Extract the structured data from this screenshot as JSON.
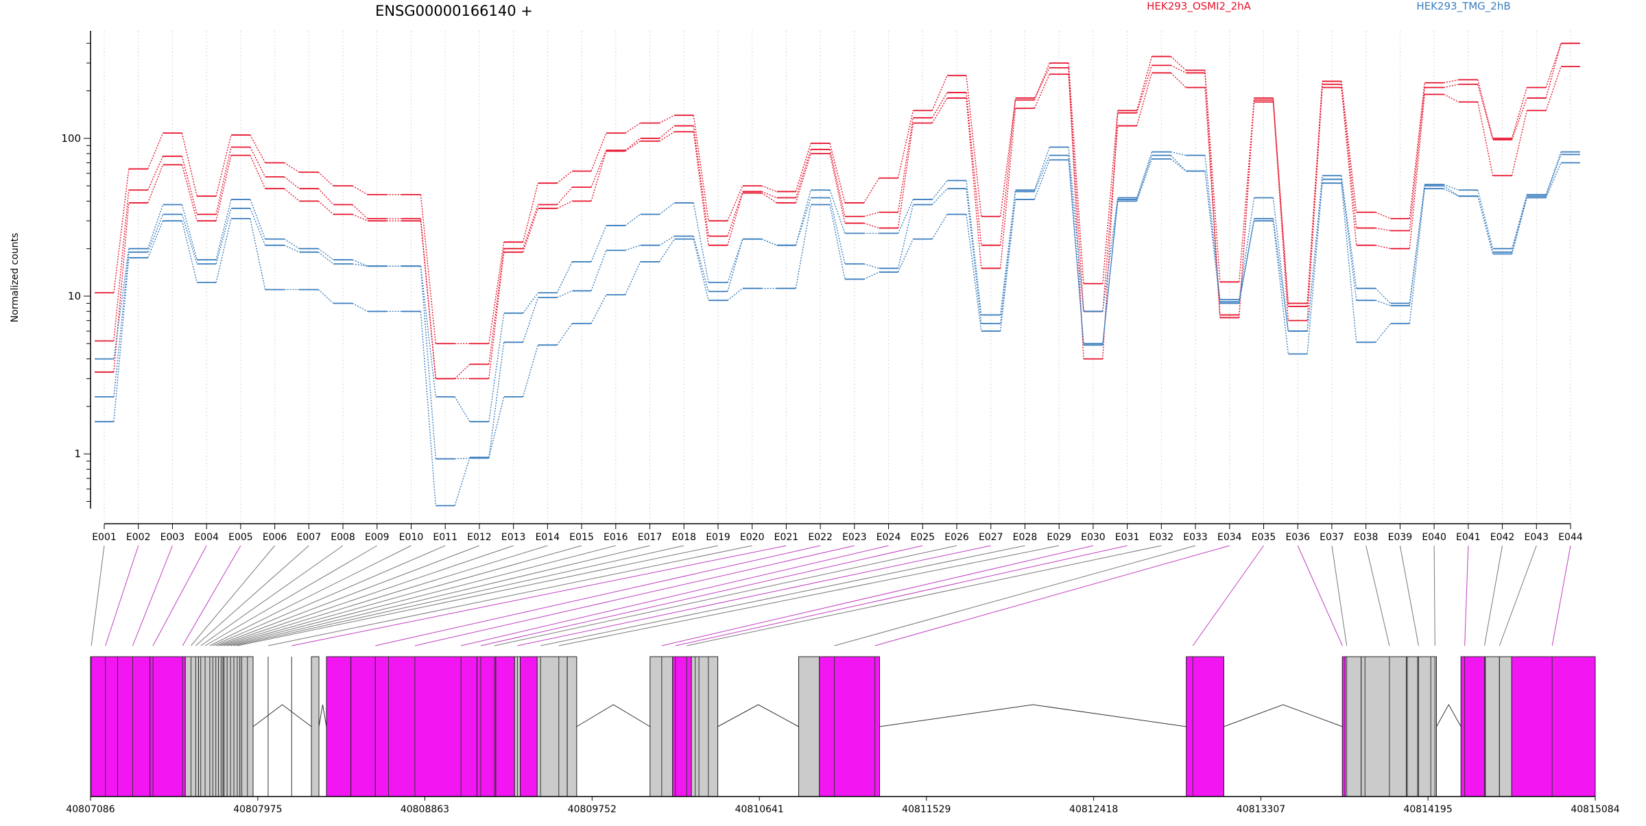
{
  "colors": {
    "accent": "#e8132c",
    "secondary": "#3a7ebf",
    "exon_diff": "#f217f2",
    "exon_plain": "#cbcbcb",
    "axis": "#000000",
    "grid": "#d8d8d8",
    "connector_grey": "#777777",
    "connector_magenta": "#c03cc0"
  },
  "header": {
    "gene_title": "ENSG00000166140 +"
  },
  "chart_data": {
    "type": "line",
    "title": "ENSG00000166140 +",
    "ylabel": "Normalized counts",
    "xlabel": "",
    "yscale": "log",
    "ylim": [
      0.45,
      480
    ],
    "yticks": [
      {
        "value": 1,
        "label": "1"
      },
      {
        "value": 10,
        "label": "10"
      },
      {
        "value": 100,
        "label": "100"
      }
    ],
    "grid": "vertical dotted lines at each exon bin",
    "legend": "top, centered over each group",
    "categories": [
      "E001",
      "E002",
      "E003",
      "E004",
      "E005",
      "E006",
      "E007",
      "E008",
      "E009",
      "E010",
      "E011",
      "E012",
      "E013",
      "E014",
      "E015",
      "E016",
      "E017",
      "E018",
      "E019",
      "E020",
      "E021",
      "E022",
      "E023",
      "E024",
      "E025",
      "E026",
      "E027",
      "E028",
      "E029",
      "E030",
      "E031",
      "E032",
      "E033",
      "E034",
      "E035",
      "E036",
      "E037",
      "E038",
      "E039",
      "E040",
      "E041",
      "E042",
      "E043",
      "E044"
    ],
    "groups": [
      {
        "name": "HEK293_OSMI2_2hA",
        "color": "#e8132c"
      },
      {
        "name": "HEK293_TMG_2hB",
        "color": "#3a7ebf"
      }
    ],
    "series": [
      {
        "group": 0,
        "values": [
          10.5,
          64,
          108,
          43,
          105,
          70,
          61,
          50,
          44,
          44,
          5.0,
          5.0,
          22,
          52,
          62,
          108,
          125,
          140,
          30,
          50,
          46,
          93,
          39,
          56,
          150,
          250,
          32,
          175,
          300,
          12,
          150,
          330,
          270,
          12.3,
          175,
          9,
          230,
          34,
          31,
          225,
          235,
          100,
          210,
          400
        ]
      },
      {
        "group": 0,
        "values": [
          5.2,
          47,
          77,
          33,
          88,
          57,
          48,
          38,
          31,
          31,
          3.0,
          3.7,
          20,
          38,
          49,
          84,
          100,
          120,
          24,
          46,
          42,
          85,
          32,
          34,
          135,
          195,
          21,
          180,
          280,
          4.0,
          145,
          290,
          260,
          7.3,
          180,
          8.6,
          220,
          27,
          26,
          210,
          220,
          98,
          180,
          400
        ]
      },
      {
        "group": 0,
        "values": [
          3.3,
          39,
          68,
          30,
          78,
          48,
          40,
          33,
          30,
          30,
          3.0,
          3.0,
          19,
          36,
          40,
          83,
          96,
          110,
          21,
          45,
          39,
          80,
          29,
          27,
          125,
          180,
          15,
          155,
          255,
          8.0,
          120,
          260,
          210,
          7.6,
          170,
          7.0,
          210,
          21,
          20,
          190,
          170,
          58,
          150,
          285
        ]
      },
      {
        "group": 1,
        "values": [
          4.0,
          20,
          38,
          17,
          41,
          23,
          20,
          17,
          15.5,
          15.5,
          2.3,
          1.6,
          7.8,
          10.5,
          16.5,
          28,
          33,
          39,
          12.2,
          23,
          21,
          47,
          25,
          25,
          41,
          54,
          7.6,
          47,
          88,
          8.0,
          42,
          82,
          78,
          9.5,
          42,
          6.0,
          58,
          11.2,
          9.0,
          51,
          47,
          20,
          44,
          82
        ]
      },
      {
        "group": 1,
        "values": [
          2.3,
          19,
          33,
          16,
          36,
          21,
          19,
          16,
          15.5,
          15.5,
          0.93,
          0.94,
          5.1,
          9.8,
          10.8,
          19.5,
          21,
          24,
          10.7,
          23,
          21,
          42,
          16,
          15,
          38,
          48,
          6.7,
          46,
          78,
          5.0,
          41,
          78,
          62,
          9.0,
          31,
          6.0,
          55,
          9.4,
          8.7,
          50,
          43,
          19,
          43,
          79
        ]
      },
      {
        "group": 1,
        "values": [
          1.6,
          17.5,
          30,
          12.2,
          31,
          11,
          11,
          9,
          8,
          8,
          0.47,
          0.95,
          2.3,
          4.9,
          6.7,
          10.2,
          16.5,
          23,
          9.4,
          11.2,
          11.2,
          38,
          12.8,
          14.2,
          23,
          33,
          6.0,
          41,
          73,
          4.9,
          40,
          74,
          62,
          9.2,
          30,
          4.3,
          52,
          5.1,
          6.7,
          48,
          43,
          18.5,
          42,
          70
        ]
      }
    ]
  },
  "gene_model": {
    "coordinate_labels": [
      "40807086",
      "40807975",
      "40808863",
      "40809752",
      "40810641",
      "40811529",
      "40812418",
      "40813307",
      "40814195",
      "40815084"
    ],
    "exons": [
      {
        "start": 40807086,
        "end": 40807230,
        "diff": true
      },
      {
        "start": 40807230,
        "end": 40807402,
        "diff": true
      },
      {
        "start": 40807402,
        "end": 40807590,
        "diff": true
      },
      {
        "start": 40807590,
        "end": 40807660,
        "diff": false
      },
      {
        "start": 40807660,
        "end": 40807790,
        "diff": false
      },
      {
        "start": 40807790,
        "end": 40807880,
        "diff": false
      },
      {
        "start": 40807880,
        "end": 40807950,
        "diff": false
      },
      {
        "start": 40808260,
        "end": 40808300,
        "diff": false
      },
      {
        "start": 40808340,
        "end": 40808470,
        "diff": true
      },
      {
        "start": 40808470,
        "end": 40808600,
        "diff": true
      },
      {
        "start": 40808600,
        "end": 40809140,
        "diff": true
      },
      {
        "start": 40809140,
        "end": 40809240,
        "diff": true
      },
      {
        "start": 40809240,
        "end": 40809340,
        "diff": true
      },
      {
        "start": 40809340,
        "end": 40809370,
        "diff": false
      },
      {
        "start": 40809370,
        "end": 40809460,
        "diff": true
      },
      {
        "start": 40809460,
        "end": 40809620,
        "diff": false
      },
      {
        "start": 40809620,
        "end": 40809670,
        "diff": false
      },
      {
        "start": 40810060,
        "end": 40810180,
        "diff": false
      },
      {
        "start": 40810180,
        "end": 40810280,
        "diff": true
      },
      {
        "start": 40810280,
        "end": 40810420,
        "diff": false
      },
      {
        "start": 40810850,
        "end": 40810960,
        "diff": false
      },
      {
        "start": 40810960,
        "end": 40811280,
        "diff": true
      },
      {
        "start": 40812910,
        "end": 40813110,
        "diff": true
      },
      {
        "start": 40813740,
        "end": 40813755,
        "diff": true
      },
      {
        "start": 40813755,
        "end": 40813840,
        "diff": false
      },
      {
        "start": 40813840,
        "end": 40814080,
        "diff": false
      },
      {
        "start": 40814080,
        "end": 40814140,
        "diff": false
      },
      {
        "start": 40814140,
        "end": 40814240,
        "diff": false
      },
      {
        "start": 40814370,
        "end": 40814500,
        "diff": true
      },
      {
        "start": 40814500,
        "end": 40814575,
        "diff": false
      },
      {
        "start": 40814575,
        "end": 40814640,
        "diff": false
      },
      {
        "start": 40814640,
        "end": 40815084,
        "diff": true
      }
    ],
    "introns": [
      {
        "start": 40807950,
        "end": 40808260
      },
      {
        "start": 40808300,
        "end": 40808340
      },
      {
        "start": 40809670,
        "end": 40810060
      },
      {
        "start": 40810420,
        "end": 40810850
      },
      {
        "start": 40811280,
        "end": 40812910
      },
      {
        "start": 40813110,
        "end": 40813740
      },
      {
        "start": 40814240,
        "end": 40814370
      }
    ],
    "bin_positions": [
      40807090,
      40807165,
      40807310,
      40807418,
      40807575,
      40807620,
      40807645,
      40807672,
      40807695,
      40807720,
      40807736,
      40807752,
      40807766,
      40807780,
      40807796,
      40807812,
      40807830,
      40807848,
      40807866,
      40807890,
      40807920,
      40808030,
      40808155,
      40808600,
      40808670,
      40808810,
      40809055,
      40809160,
      40809233,
      40809355,
      40809478,
      40809575,
      40810122,
      40810195,
      40810255,
      40810300,
      40810320,
      40810370,
      40811040,
      40811255,
      40812945,
      40813740,
      40813763,
      40813860,
      40813990,
      40814085,
      40814145,
      40814210,
      40814232,
      40814390,
      40814495,
      40814575,
      40814855
    ],
    "bin_map": [
      {
        "exon": "E001",
        "pos": 40807090,
        "diff": false
      },
      {
        "exon": "E002",
        "pos": 40807165,
        "diff": true
      },
      {
        "exon": "E003",
        "pos": 40807310,
        "diff": true
      },
      {
        "exon": "E004",
        "pos": 40807418,
        "diff": true
      },
      {
        "exon": "E005",
        "pos": 40807575,
        "diff": true
      },
      {
        "exon": "E006",
        "pos": 40807620,
        "diff": false
      },
      {
        "exon": "E007",
        "pos": 40807645,
        "diff": false
      },
      {
        "exon": "E008",
        "pos": 40807672,
        "diff": false
      },
      {
        "exon": "E009",
        "pos": 40807695,
        "diff": false
      },
      {
        "exon": "E010",
        "pos": 40807720,
        "diff": false
      },
      {
        "exon": "E011",
        "pos": 40807736,
        "diff": false
      },
      {
        "exon": "E012",
        "pos": 40807752,
        "diff": false
      },
      {
        "exon": "E013",
        "pos": 40807766,
        "diff": false
      },
      {
        "exon": "E014",
        "pos": 40807780,
        "diff": false
      },
      {
        "exon": "E015",
        "pos": 40807796,
        "diff": false
      },
      {
        "exon": "E016",
        "pos": 40807812,
        "diff": false
      },
      {
        "exon": "E017",
        "pos": 40807830,
        "diff": false
      },
      {
        "exon": "E018",
        "pos": 40807848,
        "diff": false
      },
      {
        "exon": "E019",
        "pos": 40807866,
        "diff": false
      },
      {
        "exon": "E020",
        "pos": 40808030,
        "diff": false
      },
      {
        "exon": "E021",
        "pos": 40808155,
        "diff": true
      },
      {
        "exon": "E022",
        "pos": 40808600,
        "diff": true
      },
      {
        "exon": "E023",
        "pos": 40808810,
        "diff": true
      },
      {
        "exon": "E024",
        "pos": 40809055,
        "diff": true
      },
      {
        "exon": "E025",
        "pos": 40809160,
        "diff": true
      },
      {
        "exon": "E026",
        "pos": 40809233,
        "diff": false
      },
      {
        "exon": "E027",
        "pos": 40809355,
        "diff": true
      },
      {
        "exon": "E028",
        "pos": 40809478,
        "diff": false
      },
      {
        "exon": "E029",
        "pos": 40809575,
        "diff": false
      },
      {
        "exon": "E030",
        "pos": 40810122,
        "diff": true
      },
      {
        "exon": "E031",
        "pos": 40810195,
        "diff": true
      },
      {
        "exon": "E032",
        "pos": 40810255,
        "diff": false
      },
      {
        "exon": "E033",
        "pos": 40811040,
        "diff": false
      },
      {
        "exon": "E034",
        "pos": 40811255,
        "diff": true
      },
      {
        "exon": "E035",
        "pos": 40812945,
        "diff": true
      },
      {
        "exon": "E036",
        "pos": 40813740,
        "diff": true
      },
      {
        "exon": "E037",
        "pos": 40813763,
        "diff": false
      },
      {
        "exon": "E038",
        "pos": 40813990,
        "diff": false
      },
      {
        "exon": "E039",
        "pos": 40814145,
        "diff": false
      },
      {
        "exon": "E040",
        "pos": 40814232,
        "diff": false
      },
      {
        "exon": "E041",
        "pos": 40814390,
        "diff": true
      },
      {
        "exon": "E042",
        "pos": 40814495,
        "diff": false
      },
      {
        "exon": "E043",
        "pos": 40814575,
        "diff": false
      },
      {
        "exon": "E044",
        "pos": 40814855,
        "diff": true
      }
    ]
  }
}
